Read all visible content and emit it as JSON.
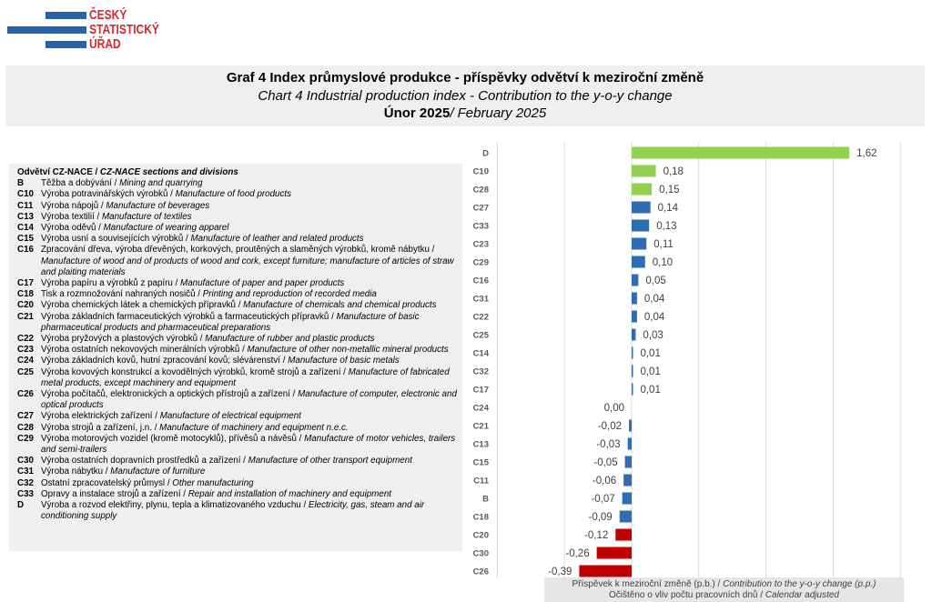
{
  "logo": {
    "line1": "ČESKÝ",
    "line2": "STATISTICKÝ",
    "line3": "ÚŘAD"
  },
  "colors": {
    "logo_blue": "#2b62ad",
    "logo_red": "#d8262c",
    "bar_green": "#92d050",
    "bar_blue": "#2e6db4",
    "bar_red": "#c00000",
    "gridline": "#d9d9d9"
  },
  "header": {
    "line1": "Graf 4 Index průmyslové produkce - příspěvky odvětví k meziroční změně",
    "line2": "Chart 4 Industrial production index - Contribution to the y-o-y change",
    "line3_cz": "Únor 2025",
    "line3_en": "/ February 2025"
  },
  "legend": {
    "header_cz": "Odvětví CZ-NACE /",
    "header_en": "CZ-NACE sections and divisions",
    "items": [
      {
        "code": "B",
        "cz": "Těžba a dobývání /",
        "en": "Mining and quarrying"
      },
      {
        "code": "C10",
        "cz": "Výroba potravinářských výrobků /",
        "en": "Manufacture of food products"
      },
      {
        "code": "C11",
        "cz": "Výroba nápojů /",
        "en": "Manufacture of beverages"
      },
      {
        "code": "C13",
        "cz": "Výroba textilií /",
        "en": "Manufacture of textiles"
      },
      {
        "code": "C14",
        "cz": "Výroba oděvů /",
        "en": "Manufacture of wearing apparel"
      },
      {
        "code": "C15",
        "cz": "Výroba usní a souvisejících výrobků /",
        "en": "Manufacture of leather and related products"
      },
      {
        "code": "C16",
        "cz": "Zpracování dřeva, výroba dřevěných, korkových, proutěných a slaměných výrobků, kromě nábytku /",
        "en": "Manufacture of wood and of products of wood and cork, except furniture; manufacture of articles of straw and plaiting materials"
      },
      {
        "code": "C17",
        "cz": "Výroba papíru a výrobků z papíru /",
        "en": "Manufacture of paper and paper products"
      },
      {
        "code": "C18",
        "cz": "Tisk a rozmnožování nahraných nosičů /",
        "en": "Printing and reproduction of recorded media"
      },
      {
        "code": "C20",
        "cz": "Výroba chemických látek a chemických přípravků /",
        "en": "Manufacture of chemicals and chemical products"
      },
      {
        "code": "C21",
        "cz": "Výroba základních farmaceutických výrobků a farmaceutických přípravků /",
        "en": "Manufacture of basic pharmaceutical products and pharmaceutical preparations"
      },
      {
        "code": "C22",
        "cz": "Výroba pryžových a plastových výrobků /",
        "en": "Manufacture of rubber and plastic products"
      },
      {
        "code": "C23",
        "cz": "Výroba ostatních nekovových minerálních výrobků /",
        "en": "Manufacture of other non-metallic mineral products"
      },
      {
        "code": "C24",
        "cz": "Výroba základních kovů, hutní zpracování kovů; slévárenství /",
        "en": "Manufacture of basic metals"
      },
      {
        "code": "C25",
        "cz": "Výroba kovových konstrukcí a kovodělných výrobků, kromě strojů a zařízení /",
        "en": "Manufacture of fabricated metal products, except machinery and equipment"
      },
      {
        "code": "C26",
        "cz": "Výroba počítačů, elektronických a optických přístrojů a zařízení /",
        "en": "Manufacture of computer, electronic and optical products"
      },
      {
        "code": "C27",
        "cz": "Výroba elektrických zařízení /",
        "en": "Manufacture of electrical equipment"
      },
      {
        "code": "C28",
        "cz": "Výroba strojů a zařízení, j.n. /",
        "en": "Manufacture of machinery and equipment n.e.c."
      },
      {
        "code": "C29",
        "cz": "Výroba motorových vozidel (kromě motocyklů), přívěsů a návěsů /",
        "en": "Manufacture of motor vehicles, trailers and semi-trailers"
      },
      {
        "code": "C30",
        "cz": "Výroba ostatních dopravních prostředků a zařízení /",
        "en": "Manufacture of other transport equipment"
      },
      {
        "code": "C31",
        "cz": "Výroba nábytku /",
        "en": "Manufacture of furniture"
      },
      {
        "code": "C32",
        "cz": "Ostatní zpracovatelský průmysl /",
        "en": "Other manufacturing"
      },
      {
        "code": "C33",
        "cz": "Opravy a instalace strojů a zařízení /",
        "en": "Repair and installation of machinery and equipment"
      },
      {
        "code": "D",
        "cz": "Výroba a rozvod elektřiny, plynu, tepla a klimatizovaného vzduchu /",
        "en": "Electricity, gas, steam and air conditioning supply"
      }
    ]
  },
  "chart_data": {
    "type": "bar",
    "orientation": "horizontal",
    "categories": [
      "D",
      "C10",
      "C28",
      "C27",
      "C33",
      "C23",
      "C29",
      "C16",
      "C31",
      "C22",
      "C25",
      "C14",
      "C32",
      "C17",
      "C24",
      "C21",
      "C13",
      "C15",
      "C11",
      "B",
      "C18",
      "C20",
      "C30",
      "C26"
    ],
    "values": [
      1.62,
      0.18,
      0.15,
      0.14,
      0.13,
      0.11,
      0.1,
      0.05,
      0.04,
      0.04,
      0.03,
      0.01,
      0.01,
      0.01,
      0.0,
      -0.02,
      -0.03,
      -0.05,
      -0.06,
      -0.07,
      -0.09,
      -0.12,
      -0.26,
      -0.39
    ],
    "data_labels": [
      "1,62",
      "0,18",
      "0,15",
      "0,14",
      "0,13",
      "0,11",
      "0,10",
      "0,05",
      "0,04",
      "0,04",
      "0,03",
      "0,01",
      "0,01",
      "0,01",
      "0,00",
      "-0,02",
      "-0,03",
      "-0,05",
      "-0,06",
      "-0,07",
      "-0,09",
      "-0,12",
      "-0,26",
      "-0,39"
    ],
    "bar_colors": [
      "#92d050",
      "#92d050",
      "#92d050",
      "#2e6db4",
      "#2e6db4",
      "#2e6db4",
      "#2e6db4",
      "#2e6db4",
      "#2e6db4",
      "#2e6db4",
      "#2e6db4",
      "#2e6db4",
      "#2e6db4",
      "#2e6db4",
      "#2e6db4",
      "#2e6db4",
      "#2e6db4",
      "#2e6db4",
      "#2e6db4",
      "#2e6db4",
      "#2e6db4",
      "#c00000",
      "#c00000",
      "#c00000"
    ],
    "xlim": [
      -1.0,
      2.0
    ],
    "grid_step": 0.5,
    "grid": true,
    "xlabel_cz": "Příspěvek k meziroční změně (p.b.) /",
    "xlabel_en": "Contribution to the y-o-y change (p.p.)",
    "note_cz": "Očištěno o vliv počtu pracovních dnů /",
    "note_en": "Calendar adjusted"
  }
}
